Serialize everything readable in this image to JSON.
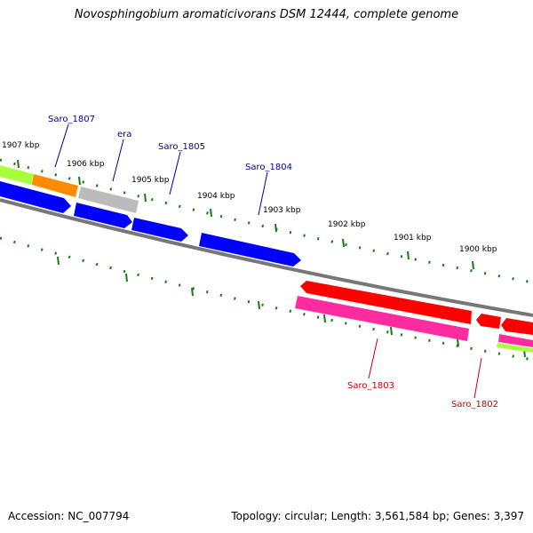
{
  "title": "Novosphingobium aromaticivorans DSM 12444, complete genome",
  "accession": "Accession: NC_007794",
  "summary": "Topology: circular; Length: 3,561,584 bp; Genes: 3,397",
  "kbp_labels": [
    "1907 kbp",
    "1906 kbp",
    "1905 kbp",
    "1904 kbp",
    "1903 kbp",
    "1902 kbp",
    "1901 kbp",
    "1900 kbp"
  ],
  "gene_labels": [
    "Saro_1807",
    "era",
    "Saro_1805",
    "Saro_1804",
    "Saro_1803",
    "Saro_1802"
  ],
  "colors": {
    "forward": "#0000ff",
    "reverse": "#ff0000",
    "magenta": "#ff2ca0",
    "orange": "#ff8c00",
    "lime": "#a8ff3e",
    "grey": "#bbbbbb",
    "backbone": "#777777",
    "ticks": "#1a7a1a"
  }
}
